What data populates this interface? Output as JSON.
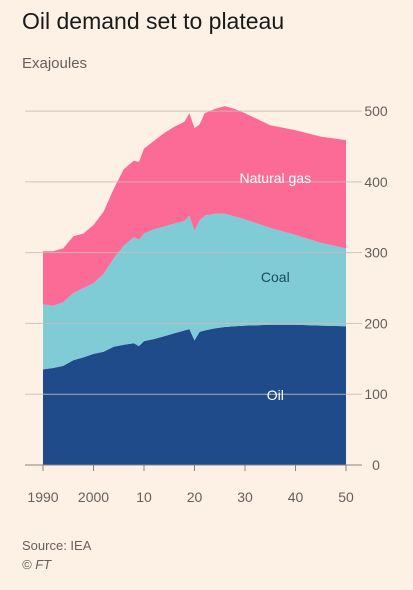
{
  "header": {
    "title": "Oil demand set to plateau",
    "subtitle": "Exajoules"
  },
  "footer": {
    "source": "Source: IEA",
    "credit": "© FT"
  },
  "colors": {
    "oil": "#1f4b8a",
    "coal": "#7fcbd6",
    "natural_gas": "#fb6b95",
    "grid": "#c9bdb3",
    "tick_text": "#66605c"
  },
  "chart_data": {
    "type": "area",
    "stacked": true,
    "x": [
      1990,
      1992,
      1994,
      1996,
      1998,
      2000,
      2002,
      2004,
      2006,
      2008,
      2009,
      2010,
      2012,
      2014,
      2016,
      2018,
      2019,
      2020,
      2021,
      2022,
      2024,
      2026,
      2028,
      2030,
      2035,
      2040,
      2045,
      2050
    ],
    "x_ticks": [
      1990,
      2000,
      2010,
      2020,
      2030,
      2040,
      2050
    ],
    "x_tick_labels": [
      "1990",
      "2000",
      "10",
      "20",
      "30",
      "40",
      "50"
    ],
    "y_ticks": [
      0,
      100,
      200,
      300,
      400,
      500
    ],
    "ylim": [
      0,
      510
    ],
    "y_axis_position": "right",
    "grid": true,
    "series": [
      {
        "name": "Oil",
        "key": "oil",
        "values": [
          135,
          137,
          140,
          148,
          152,
          157,
          160,
          167,
          170,
          172,
          168,
          175,
          178,
          182,
          186,
          190,
          192,
          176,
          188,
          190,
          193,
          195,
          196,
          197,
          198,
          198,
          197,
          196
        ]
      },
      {
        "name": "Coal",
        "key": "coal",
        "values": [
          92,
          88,
          90,
          95,
          98,
          100,
          110,
          125,
          140,
          150,
          150,
          152,
          155,
          155,
          155,
          155,
          160,
          155,
          158,
          162,
          162,
          160,
          155,
          150,
          137,
          127,
          117,
          110
        ]
      },
      {
        "name": "Natural gas",
        "key": "natural_gas",
        "values": [
          75,
          77,
          76,
          80,
          77,
          82,
          88,
          98,
          108,
          108,
          110,
          120,
          125,
          132,
          137,
          140,
          145,
          145,
          135,
          145,
          148,
          152,
          152,
          150,
          145,
          148,
          150,
          153
        ]
      }
    ]
  }
}
